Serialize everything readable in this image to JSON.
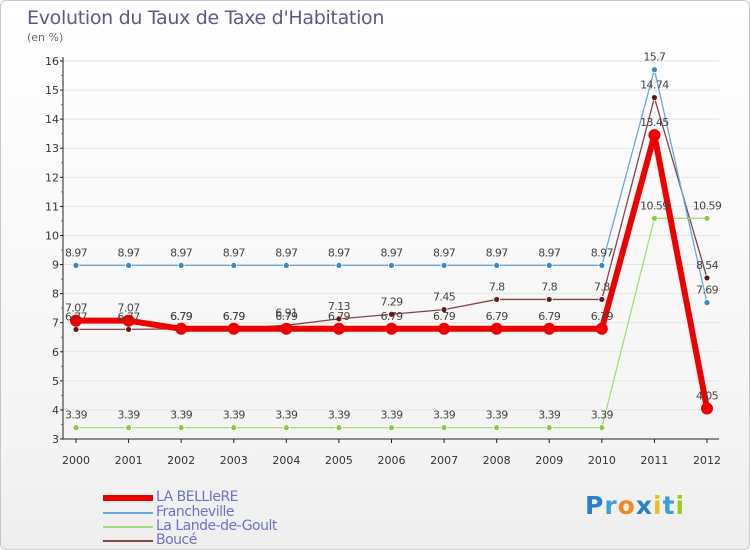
{
  "title": "Evolution du Taux de Taxe d'Habitation",
  "subtitle": "(en %)",
  "logo": {
    "text": "Proxiti",
    "letters": [
      "P",
      "r",
      "o",
      "x",
      "i",
      "t",
      "i"
    ],
    "colors": [
      "#2a80c8",
      "#3aa0d8",
      "#f08a20",
      "#2a80c8",
      "#e8c020",
      "#3aa0d8",
      "#a0c820"
    ]
  },
  "chart_data": {
    "type": "line",
    "title": "Evolution du Taux de Taxe d'Habitation",
    "ylabel": "(en %)",
    "xlabel": "",
    "x": [
      "2000",
      "2001",
      "2002",
      "2003",
      "2004",
      "2005",
      "2006",
      "2007",
      "2008",
      "2009",
      "2010",
      "2011",
      "2012"
    ],
    "ylim": [
      3,
      16
    ],
    "yticks": [
      "3",
      "4",
      "5",
      "6",
      "7",
      "8",
      "9",
      "10",
      "11",
      "12",
      "13",
      "14",
      "15",
      "16"
    ],
    "legend_position": "bottom-left",
    "series": [
      {
        "name": "LA BELLIeRE",
        "color": "#ee0000",
        "width": 6,
        "marker_fill": "#ee0000",
        "values": [
          7.07,
          7.07,
          6.79,
          6.79,
          6.79,
          6.79,
          6.79,
          6.79,
          6.79,
          6.79,
          6.79,
          13.45,
          4.05
        ],
        "labels": [
          "7.07",
          "7.07",
          "6.79",
          "6.79",
          "6.79",
          "6.79",
          "6.79",
          "6.79",
          "6.79",
          "6.79",
          "6.79",
          "13.45",
          "4.05"
        ]
      },
      {
        "name": "Francheville",
        "color": "#6aa8d8",
        "width": 1.3,
        "marker_fill": "#3a88c8",
        "values": [
          8.97,
          8.97,
          8.97,
          8.97,
          8.97,
          8.97,
          8.97,
          8.97,
          8.97,
          8.97,
          8.97,
          15.7,
          7.69
        ],
        "labels": [
          "8.97",
          "8.97",
          "8.97",
          "8.97",
          "8.97",
          "8.97",
          "8.97",
          "8.97",
          "8.97",
          "8.97",
          "8.97",
          "15.7",
          "7.69"
        ]
      },
      {
        "name": "La Lande-de-Goult",
        "color": "#a8dc78",
        "width": 1.3,
        "marker_fill": "#88cc44",
        "values": [
          3.39,
          3.39,
          3.39,
          3.39,
          3.39,
          3.39,
          3.39,
          3.39,
          3.39,
          3.39,
          3.39,
          10.59,
          10.59
        ],
        "labels": [
          "3.39",
          "3.39",
          "3.39",
          "3.39",
          "3.39",
          "3.39",
          "3.39",
          "3.39",
          "3.39",
          "3.39",
          "3.39",
          "10.59",
          "10.59"
        ]
      },
      {
        "name": "Boucé",
        "color": "#884444",
        "width": 1.3,
        "marker_fill": "#661818",
        "values": [
          6.77,
          6.77,
          6.79,
          6.79,
          6.91,
          7.13,
          7.29,
          7.45,
          7.8,
          7.8,
          7.8,
          14.74,
          8.54
        ],
        "labels": [
          "6.77",
          "6.77",
          "6.79",
          "6.79",
          "6.91",
          "7.13",
          "7.29",
          "7.45",
          "7.8",
          "7.8",
          "7.8",
          "14.74",
          "8.54"
        ]
      }
    ]
  }
}
